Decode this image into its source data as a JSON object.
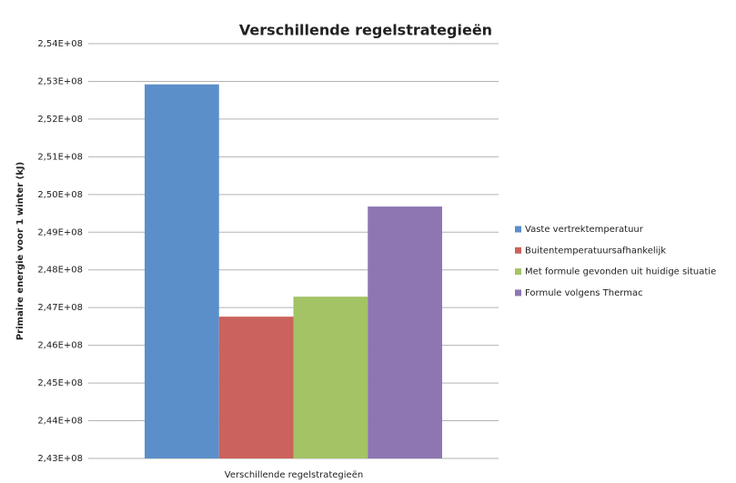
{
  "chart_data": {
    "type": "bar",
    "title": "Verschillende regelstrategieën",
    "x_label": "Verschillende regelstrategieën",
    "y_label": "Primaire energie voor 1 winter (kJ)",
    "categories": [
      null
    ],
    "series": [
      {
        "name": "Vaste vertrektemperatuur",
        "color": "#5b8fc9",
        "values": [
          252920000
        ]
      },
      {
        "name": "Buitentemperatuursafhankelijk",
        "color": "#cc625d",
        "values": [
          246760000
        ]
      },
      {
        "name": "Met formule gevonden uit huidige situatie",
        "color": "#a3c365",
        "values": [
          247290000
        ]
      },
      {
        "name": "Formule volgens Thermac",
        "color": "#8d76b2",
        "values": [
          249680000
        ]
      }
    ],
    "ylim": [
      243000000,
      254000000
    ],
    "yticks": [
      {
        "value": 243000000,
        "label": "2,43E+08"
      },
      {
        "value": 244000000,
        "label": "2,44E+08"
      },
      {
        "value": 245000000,
        "label": "2,45E+08"
      },
      {
        "value": 246000000,
        "label": "2,46E+08"
      },
      {
        "value": 247000000,
        "label": "2,47E+08"
      },
      {
        "value": 248000000,
        "label": "2,48E+08"
      },
      {
        "value": 249000000,
        "label": "2,49E+08"
      },
      {
        "value": 250000000,
        "label": "2,50E+08"
      },
      {
        "value": 251000000,
        "label": "2,51E+08"
      },
      {
        "value": 252000000,
        "label": "2,52E+08"
      },
      {
        "value": 253000000,
        "label": "2,53E+08"
      },
      {
        "value": 254000000,
        "label": "2,54E+08"
      }
    ],
    "grid": true,
    "legend": "right"
  }
}
